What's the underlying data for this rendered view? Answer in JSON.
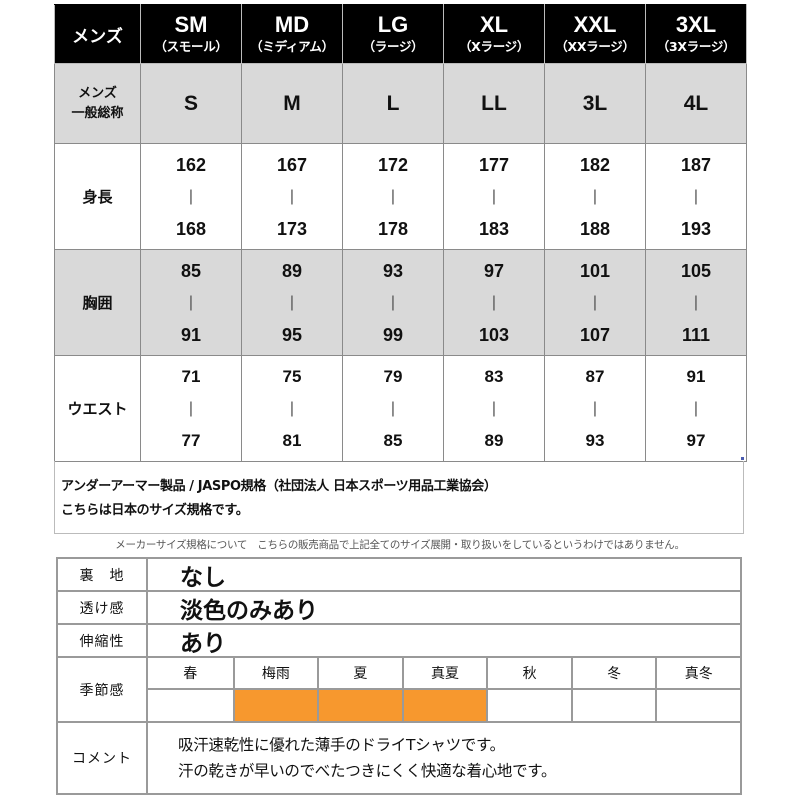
{
  "size_table": {
    "corner_label": "メンズ",
    "sizes": [
      {
        "code": "SM",
        "reading": "（スモール）"
      },
      {
        "code": "MD",
        "reading": "（ミディアム）"
      },
      {
        "code": "LG",
        "reading": "（ラージ）"
      },
      {
        "code": "XL",
        "reading": "（Xラージ）"
      },
      {
        "code": "XXL",
        "reading": "（XXラージ）"
      },
      {
        "code": "3XL",
        "reading": "（3Xラージ）"
      }
    ],
    "general_row": {
      "label_line1": "メンズ",
      "label_line2": "一般総称",
      "values": [
        "S",
        "M",
        "L",
        "LL",
        "3L",
        "4L"
      ]
    },
    "height_row": {
      "label": "身長",
      "separator": "|",
      "ranges": [
        {
          "min": "162",
          "max": "168"
        },
        {
          "min": "167",
          "max": "173"
        },
        {
          "min": "172",
          "max": "178"
        },
        {
          "min": "177",
          "max": "183"
        },
        {
          "min": "182",
          "max": "188"
        },
        {
          "min": "187",
          "max": "193"
        }
      ]
    },
    "chest_row": {
      "label": "胸囲",
      "separator": "|",
      "ranges": [
        {
          "min": "85",
          "max": "91"
        },
        {
          "min": "89",
          "max": "95"
        },
        {
          "min": "93",
          "max": "99"
        },
        {
          "min": "97",
          "max": "103"
        },
        {
          "min": "101",
          "max": "107"
        },
        {
          "min": "105",
          "max": "111"
        }
      ]
    },
    "waist_row": {
      "label": "ウエスト",
      "separator": "|",
      "ranges": [
        {
          "min": "71",
          "max": "77"
        },
        {
          "min": "75",
          "max": "81"
        },
        {
          "min": "79",
          "max": "85"
        },
        {
          "min": "83",
          "max": "89"
        },
        {
          "min": "87",
          "max": "93"
        },
        {
          "min": "91",
          "max": "97"
        }
      ]
    }
  },
  "note": {
    "line1": "アンダーアーマー製品 / JASPO規格（社団法人 日本スポーツ用品工業協会）",
    "line2": "こちらは日本のサイズ規格です。"
  },
  "disclaimer": "メーカーサイズ規格について　こちらの販売商品で上記全てのサイズ展開・取り扱いをしているというわけではありません。",
  "spec": {
    "lining": {
      "label": "裏　地",
      "value": "なし"
    },
    "sheer": {
      "label": "透け感",
      "value": "淡色のみあり"
    },
    "stretch": {
      "label": "伸縮性",
      "value": "あり"
    },
    "season": {
      "label": "季節感",
      "highlight_color": "#f7982e",
      "items": [
        {
          "name": "春",
          "active": false
        },
        {
          "name": "梅雨",
          "active": true
        },
        {
          "name": "夏",
          "active": true
        },
        {
          "name": "真夏",
          "active": true
        },
        {
          "name": "秋",
          "active": false
        },
        {
          "name": "冬",
          "active": false
        },
        {
          "name": "真冬",
          "active": false
        }
      ]
    },
    "comment": {
      "label": "コメント",
      "line1": "吸汗速乾性に優れた薄手のドライTシャツです。",
      "line2": "汗の乾きが早いのでべたつきにくく快適な着心地です。"
    }
  }
}
